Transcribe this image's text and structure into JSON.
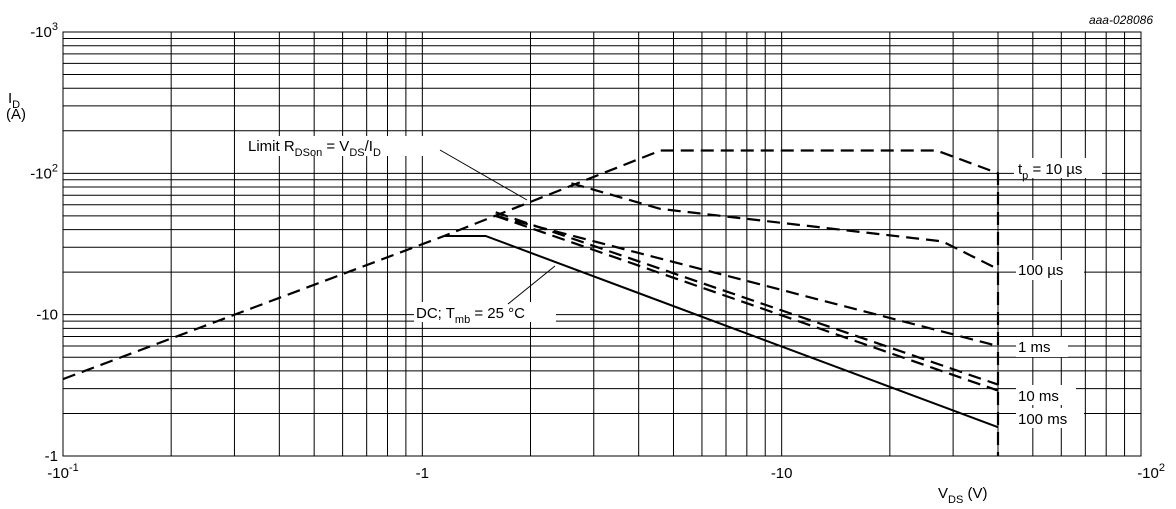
{
  "figure_ref": "aaa-028086",
  "chart_data": {
    "type": "line",
    "scale": {
      "x": "log",
      "y": "log"
    },
    "xlim": [
      -0.1,
      -100
    ],
    "ylim": [
      -1,
      -1000
    ],
    "x_tick_labels": [
      {
        "value": -0.1,
        "base": "-10",
        "exp": "-1"
      },
      {
        "value": -1,
        "base": "-1",
        "exp": ""
      },
      {
        "value": -10,
        "base": "-10",
        "exp": ""
      },
      {
        "value": -100,
        "base": "-10",
        "exp": "2"
      }
    ],
    "y_tick_labels": [
      {
        "value": -1,
        "base": "-1",
        "exp": ""
      },
      {
        "value": -10,
        "base": "-10",
        "exp": ""
      },
      {
        "value": -100,
        "base": "-10",
        "exp": "2"
      },
      {
        "value": -1000,
        "base": "-10",
        "exp": "3"
      }
    ],
    "ylabel": {
      "symbol": "I",
      "sub": "D",
      "unit": "(A)"
    },
    "xlabel": {
      "symbol": "V",
      "sub": "DS",
      "unit": " (V)"
    },
    "grid": true,
    "series": [
      {
        "label": "t_p = 10 µs",
        "style": "dashed",
        "x": [
          -0.1,
          -1.15,
          -4.6,
          -5.8,
          -27,
          -40,
          -40
        ],
        "y": [
          -3.5,
          -36,
          -145,
          -145,
          -145,
          -100,
          -1
        ]
      },
      {
        "label": "100 µs",
        "style": "dashed",
        "x": [
          -2.6,
          -4.6,
          -28,
          -40
        ],
        "y": [
          -85,
          -56,
          -33,
          -21
        ]
      },
      {
        "label": "1 ms",
        "style": "dashed",
        "x": [
          -1.6,
          -40
        ],
        "y": [
          -50,
          -6
        ]
      },
      {
        "label": "10 ms",
        "style": "dashed",
        "x": [
          -1.6,
          -40
        ],
        "y": [
          -53,
          -3.2
        ]
      },
      {
        "label": "100 ms",
        "style": "dashed",
        "x": [
          -1.6,
          -40
        ],
        "y": [
          -50,
          -2.9
        ]
      },
      {
        "label": "DC; T_mb = 25 °C",
        "style": "solid",
        "x": [
          -1.15,
          -1.5,
          -40
        ],
        "y": [
          -36,
          -36,
          -1.6
        ]
      }
    ],
    "annotations": {
      "limit": {
        "text": "Limit R",
        "sub": "DSon",
        "text2": " = V",
        "sub2": "DS",
        "text3": "/I",
        "sub3": "D"
      },
      "dc": {
        "text": "DC; T",
        "sub": "mb",
        "text2": " = 25 °C"
      },
      "tp": {
        "text": "t",
        "sub": "p",
        "text2": " = 10 µs"
      },
      "l100us": "100 µs",
      "l1ms": "1 ms",
      "l10ms": "10 ms",
      "l100ms": "100 ms"
    }
  }
}
